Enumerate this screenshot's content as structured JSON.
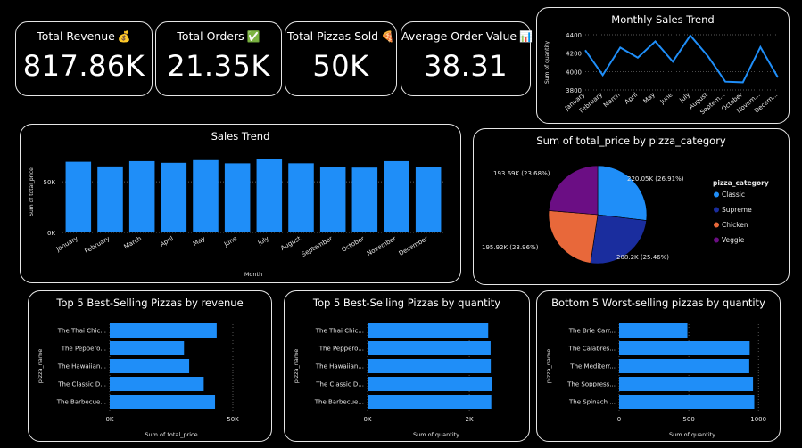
{
  "kpis": [
    {
      "label": "Total Revenue",
      "emoji": "💰",
      "value": "817.86K"
    },
    {
      "label": "Total Orders",
      "emoji": "✅",
      "value": "21.35K"
    },
    {
      "label": "Total Pizzas Sold",
      "emoji": "🍕",
      "value": "50K"
    },
    {
      "label": "Average Order Value",
      "emoji": "📊",
      "value": "38.31"
    }
  ],
  "colors": {
    "bar": "#1f8ef8",
    "line": "#1f8ef8",
    "classic": "#1f8ef8",
    "supreme": "#1a2d9e",
    "chicken": "#e8683a",
    "veggie": "#6b0e84",
    "border": "#e6e6e6",
    "background": "#000000"
  },
  "chart_data": [
    {
      "id": "monthly",
      "type": "line",
      "title": "Monthly Sales Trend",
      "ylabel": "Sum of quantity",
      "xlabel": "",
      "categories": [
        "January",
        "February",
        "March",
        "April",
        "May",
        "June",
        "July",
        "August",
        "September",
        "October",
        "November",
        "December"
      ],
      "tick_labels": [
        "January",
        "February",
        "March",
        "April",
        "May",
        "June",
        "July",
        "August",
        "Septem...",
        "October",
        "Novem...",
        "Decem..."
      ],
      "values": [
        4232,
        3961,
        4261,
        4151,
        4328,
        4107,
        4392,
        4168,
        3890,
        3883,
        4266,
        3935
      ],
      "ylim": [
        3800,
        4400
      ],
      "yticks": [
        3800,
        4000,
        4200,
        4400
      ],
      "ytick_labels": [
        "3800",
        "4000",
        "4200",
        "4400"
      ],
      "grid": true
    },
    {
      "id": "sales",
      "type": "bar",
      "title": "Sales Trend",
      "ylabel": "Sum of total_price",
      "xlabel": "Month",
      "categories": [
        "January",
        "February",
        "March",
        "April",
        "May",
        "June",
        "July",
        "August",
        "September",
        "October",
        "November",
        "December"
      ],
      "values": [
        69793,
        65160,
        70397,
        68737,
        71403,
        68230,
        72558,
        68278,
        64180,
        64028,
        70395,
        64701
      ],
      "ylim": [
        0,
        80000
      ],
      "yticks": [
        0,
        50000
      ],
      "ytick_labels": [
        "0K",
        "50K"
      ],
      "grid": true
    },
    {
      "id": "pie",
      "type": "pie",
      "title": "Sum of total_price by pizza_category",
      "legend_title": "pizza_category",
      "legend_position": "right",
      "slices": [
        {
          "name": "Classic",
          "value": 220053,
          "label": "220.05K (26.91%)",
          "color_key": "classic"
        },
        {
          "name": "Supreme",
          "value": 208197,
          "label": "208.2K (25.46%)",
          "color_key": "supreme"
        },
        {
          "name": "Chicken",
          "value": 195920,
          "label": "195.92K (23.96%)",
          "color_key": "chicken"
        },
        {
          "name": "Veggie",
          "value": 193690,
          "label": "193.69K (23.68%)",
          "color_key": "veggie"
        }
      ]
    },
    {
      "id": "top-rev",
      "type": "bar",
      "orientation": "horizontal",
      "title": "Top 5 Best-Selling Pizzas by revenue",
      "ylabel": "pizza_name",
      "xlabel": "Sum of total_price",
      "categories": [
        "The Thai Chic...",
        "The Peppero...",
        "The Hawaiian...",
        "The Classic D...",
        "The Barbecue..."
      ],
      "values": [
        43434,
        30162,
        32273,
        38180,
        42768
      ],
      "xlim": [
        0,
        50000
      ],
      "xticks": [
        0,
        50000
      ],
      "xtick_labels": [
        "0K",
        "50K"
      ],
      "grid": true
    },
    {
      "id": "top-qty",
      "type": "bar",
      "orientation": "horizontal",
      "title": "Top 5 Best-Selling Pizzas by quantity",
      "ylabel": "pizza_name",
      "xlabel": "Sum of quantity",
      "categories": [
        "The Thai Chic...",
        "The Peppero...",
        "The Hawaiian...",
        "The Classic D...",
        "The Barbecue..."
      ],
      "values": [
        2371,
        2418,
        2422,
        2453,
        2432
      ],
      "xlim": [
        0,
        2700
      ],
      "xticks": [
        0,
        2000
      ],
      "xtick_labels": [
        "0K",
        "2K"
      ],
      "grid": true
    },
    {
      "id": "bottom-qty",
      "type": "bar",
      "orientation": "horizontal",
      "title": "Bottom 5 Worst-selling pizzas by quantity",
      "ylabel": "pizza_name",
      "xlabel": "Sum of quantity",
      "categories": [
        "The Brie Carr...",
        "The Calabres...",
        "The Mediterr...",
        "The Soppress...",
        "The Spinach ..."
      ],
      "values": [
        490,
        937,
        934,
        961,
        970
      ],
      "xlim": [
        0,
        1050
      ],
      "xticks": [
        0,
        500,
        1000
      ],
      "xtick_labels": [
        "0",
        "500",
        "1000"
      ],
      "grid": true
    }
  ]
}
